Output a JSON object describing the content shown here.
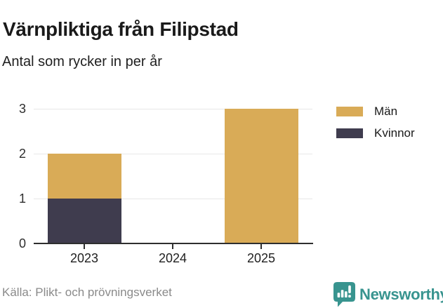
{
  "chart_data": {
    "type": "bar",
    "stacked": true,
    "title": "Värnpliktiga från Filipstad",
    "subtitle": "Antal som rycker in per år",
    "categories": [
      "2023",
      "2024",
      "2025"
    ],
    "series": [
      {
        "name": "Män",
        "color": "#d9ab57",
        "values": [
          1,
          0,
          3
        ]
      },
      {
        "name": "Kvinnor",
        "color": "#3f3c4e",
        "values": [
          1,
          0,
          0
        ]
      }
    ],
    "stack_order_bottom_to_top": [
      "Kvinnor",
      "Män"
    ],
    "totals_per_category": [
      2,
      0,
      3
    ],
    "y_ticks": [
      0,
      1,
      2,
      3
    ],
    "ylim": [
      0,
      3
    ],
    "xlabel": "",
    "ylabel": "",
    "grid": true,
    "legend_position": "right"
  },
  "footer": {
    "source": "Källa: Plikt- och prövningsverket",
    "brand": "Newsworthy"
  },
  "colors": {
    "men": "#d9ab57",
    "women": "#3f3c4e",
    "brand_teal": "#38948f",
    "gridline": "#e7e7e7",
    "axis": "#2e2e2e",
    "title_text": "#1a1a1a",
    "source_text": "#8a8a8a"
  }
}
